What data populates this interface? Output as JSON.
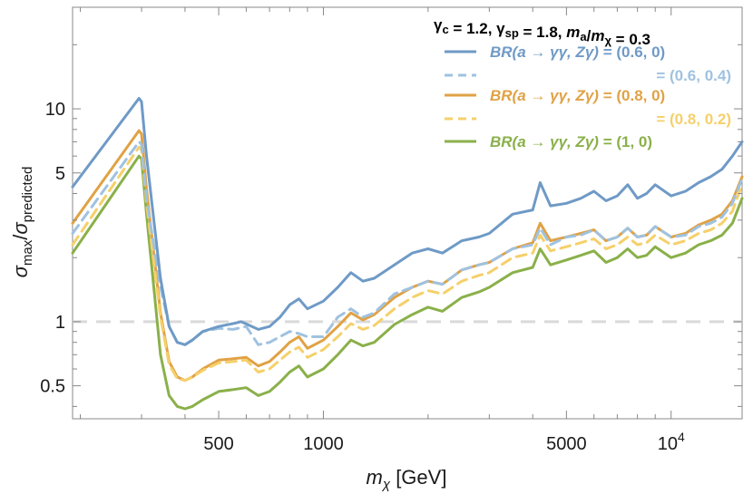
{
  "chart_data": {
    "type": "line",
    "title": "",
    "xlabel_main": "m",
    "xlabel_sub": "χ",
    "xlabel_unit": " [GeV]",
    "ylabel_num": "σ",
    "ylabel_num_sub": "max",
    "ylabel_den": "σ",
    "ylabel_den_sub": "predicted",
    "xscale": "log",
    "yscale": "log",
    "xlim": [
      190,
      16000
    ],
    "ylim": [
      0.35,
      30
    ],
    "x_ticks": [
      {
        "value": 500,
        "label": "500"
      },
      {
        "value": 1000,
        "label": "1000"
      },
      {
        "value": 5000,
        "label": "5000"
      },
      {
        "value": 10000,
        "label": "10",
        "sup": "4"
      }
    ],
    "y_ticks": [
      {
        "value": 0.5,
        "label": "0.5"
      },
      {
        "value": 1,
        "label": "1"
      },
      {
        "value": 5,
        "label": "5"
      },
      {
        "value": 10,
        "label": "10"
      }
    ],
    "reference_line": {
      "y": 1,
      "style": "dashed",
      "color": "#d9d9d9"
    },
    "header": {
      "parts": [
        {
          "t": "γ",
          "sub": "c"
        },
        {
          "t": " = 1.2, "
        },
        {
          "t": "γ",
          "sub": "sp"
        },
        {
          "t": " = 1.8, "
        },
        {
          "t": "m",
          "italic": true,
          "sub": "a"
        },
        {
          "t": "/"
        },
        {
          "t": "m",
          "italic": true,
          "sub": "χ"
        },
        {
          "t": " = 0.3"
        }
      ]
    },
    "legend_position": "top-right",
    "legend_prefix": "BR(a → γγ, Zγ) = ",
    "series": [
      {
        "label": "(0.6, 0)",
        "show_prefix": true,
        "color": "#6f9ac6",
        "dash": "solid",
        "x": [
          190,
          295,
          300,
          310,
          340,
          360,
          380,
          400,
          420,
          450,
          500,
          550,
          580,
          650,
          700,
          750,
          800,
          850,
          900,
          1000,
          1100,
          1200,
          1300,
          1400,
          1600,
          1800,
          2000,
          2200,
          2500,
          2800,
          3000,
          3500,
          4000,
          4200,
          4500,
          5000,
          5500,
          6000,
          6500,
          7000,
          7500,
          8000,
          8500,
          9000,
          10000,
          11000,
          12000,
          13000,
          14000,
          15000,
          16000
        ],
        "y": [
          4.3,
          11.2,
          10.8,
          6.0,
          1.6,
          0.95,
          0.8,
          0.78,
          0.82,
          0.9,
          0.95,
          0.98,
          1.0,
          0.92,
          0.95,
          1.05,
          1.2,
          1.28,
          1.15,
          1.25,
          1.45,
          1.7,
          1.55,
          1.6,
          1.85,
          2.1,
          2.2,
          2.1,
          2.4,
          2.5,
          2.6,
          3.2,
          3.35,
          4.5,
          3.5,
          3.6,
          3.8,
          4.1,
          3.7,
          3.9,
          4.4,
          3.8,
          4.0,
          4.4,
          3.9,
          4.1,
          4.5,
          4.8,
          5.2,
          6.0,
          7.0
        ]
      },
      {
        "label": "= (0.6, 0.4)",
        "show_prefix": false,
        "color": "#9fc2e0",
        "dash": "dashed",
        "x": [
          190,
          295,
          300,
          310,
          340,
          360,
          380,
          400,
          420,
          450,
          500,
          550,
          600,
          650,
          700,
          750,
          800,
          850,
          900,
          1000,
          1100,
          1200,
          1300,
          1400,
          1600,
          1800,
          2000,
          2200,
          2500,
          2800,
          3000,
          3500,
          4000,
          4200,
          4500,
          5000,
          5500,
          6000,
          6500,
          7000,
          7500,
          8000,
          8500,
          9000,
          10000,
          11000,
          12000,
          13000,
          14000,
          15000,
          16000
        ],
        "y": [
          2.6,
          7.0,
          6.8,
          3.8,
          1.45,
          0.95,
          0.8,
          0.78,
          0.82,
          0.9,
          0.93,
          0.92,
          0.95,
          0.78,
          0.8,
          0.85,
          0.9,
          0.88,
          0.85,
          0.85,
          1.05,
          1.15,
          1.05,
          1.1,
          1.35,
          1.45,
          1.55,
          1.5,
          1.75,
          1.85,
          1.9,
          2.2,
          2.3,
          2.75,
          2.3,
          2.5,
          2.55,
          2.7,
          2.4,
          2.5,
          2.75,
          2.5,
          2.55,
          2.8,
          2.5,
          2.55,
          2.8,
          2.9,
          3.1,
          3.6,
          4.7
        ]
      },
      {
        "label": "(0.8, 0)",
        "show_prefix": true,
        "color": "#e0a245",
        "dash": "solid",
        "x": [
          190,
          295,
          300,
          310,
          340,
          360,
          380,
          400,
          420,
          450,
          500,
          550,
          600,
          650,
          700,
          750,
          800,
          850,
          900,
          1000,
          1100,
          1200,
          1300,
          1400,
          1600,
          1800,
          2000,
          2200,
          2500,
          2800,
          3000,
          3500,
          4000,
          4200,
          4500,
          5000,
          5500,
          6000,
          6500,
          7000,
          7500,
          8000,
          8500,
          9000,
          10000,
          11000,
          12000,
          13000,
          14000,
          15000,
          16000
        ],
        "y": [
          2.9,
          7.9,
          7.6,
          4.2,
          1.1,
          0.65,
          0.55,
          0.53,
          0.55,
          0.6,
          0.66,
          0.67,
          0.68,
          0.62,
          0.65,
          0.72,
          0.8,
          0.85,
          0.75,
          0.82,
          0.95,
          1.1,
          1.02,
          1.08,
          1.3,
          1.45,
          1.55,
          1.5,
          1.75,
          1.85,
          1.9,
          2.2,
          2.35,
          2.9,
          2.4,
          2.5,
          2.6,
          2.7,
          2.4,
          2.5,
          2.75,
          2.5,
          2.55,
          2.8,
          2.5,
          2.6,
          2.85,
          3.0,
          3.2,
          3.7,
          4.8
        ]
      },
      {
        "label": "= (0.8, 0.2)",
        "show_prefix": false,
        "color": "#f5d06a",
        "dash": "dashed",
        "x": [
          190,
          295,
          300,
          310,
          340,
          360,
          380,
          400,
          420,
          450,
          500,
          550,
          600,
          650,
          700,
          750,
          800,
          850,
          900,
          1000,
          1100,
          1200,
          1300,
          1400,
          1600,
          1800,
          2000,
          2200,
          2500,
          2800,
          3000,
          3500,
          4000,
          4200,
          4500,
          5000,
          5500,
          6000,
          6500,
          7000,
          7500,
          8000,
          8500,
          9000,
          10000,
          11000,
          12000,
          13000,
          14000,
          15000,
          16000
        ],
        "y": [
          2.3,
          6.6,
          6.4,
          3.6,
          1.05,
          0.63,
          0.54,
          0.53,
          0.55,
          0.59,
          0.64,
          0.65,
          0.66,
          0.58,
          0.6,
          0.66,
          0.72,
          0.76,
          0.68,
          0.74,
          0.85,
          0.98,
          0.92,
          0.96,
          1.15,
          1.3,
          1.4,
          1.35,
          1.55,
          1.65,
          1.7,
          2.0,
          2.1,
          2.55,
          2.15,
          2.25,
          2.35,
          2.45,
          2.2,
          2.3,
          2.5,
          2.3,
          2.35,
          2.55,
          2.3,
          2.4,
          2.6,
          2.7,
          2.9,
          3.3,
          4.4
        ]
      },
      {
        "label": "(1, 0)",
        "show_prefix": true,
        "color": "#8ab04a",
        "dash": "solid",
        "x": [
          190,
          295,
          300,
          310,
          340,
          360,
          380,
          400,
          420,
          450,
          500,
          550,
          600,
          650,
          700,
          750,
          800,
          850,
          900,
          1000,
          1100,
          1200,
          1300,
          1400,
          1600,
          1800,
          2000,
          2200,
          2500,
          2800,
          3000,
          3500,
          4000,
          4200,
          4500,
          5000,
          5500,
          6000,
          6500,
          7000,
          7500,
          8000,
          8500,
          9000,
          10000,
          11000,
          12000,
          13000,
          14000,
          15000,
          16000
        ],
        "y": [
          2.1,
          6.0,
          5.8,
          3.2,
          0.7,
          0.45,
          0.4,
          0.39,
          0.4,
          0.43,
          0.47,
          0.48,
          0.49,
          0.45,
          0.47,
          0.52,
          0.58,
          0.62,
          0.55,
          0.6,
          0.7,
          0.82,
          0.77,
          0.8,
          0.97,
          1.08,
          1.17,
          1.12,
          1.3,
          1.38,
          1.45,
          1.7,
          1.8,
          2.2,
          1.85,
          1.95,
          2.05,
          2.15,
          1.9,
          2.0,
          2.2,
          2.0,
          2.05,
          2.25,
          2.0,
          2.1,
          2.3,
          2.4,
          2.55,
          2.9,
          3.8
        ]
      }
    ]
  }
}
